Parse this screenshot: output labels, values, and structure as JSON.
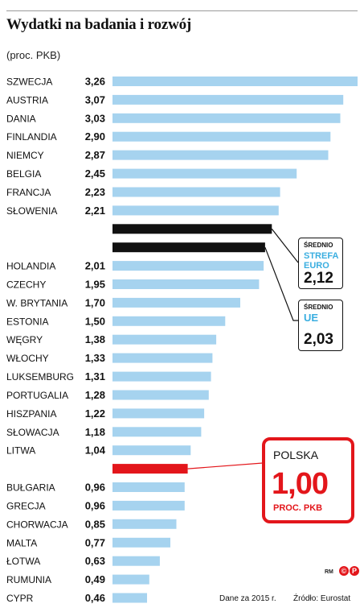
{
  "title": "Wydatki na badania i rozwój",
  "subtitle": "(proc. PKB)",
  "colors": {
    "bar": "#a6d3ef",
    "highlight": "#e3161b",
    "average": "#111111",
    "accent": "#3aaee0"
  },
  "chart_data": {
    "type": "bar",
    "orientation": "horizontal",
    "title": "Wydatki na badania i rozwój",
    "subtitle": "(proc. PKB)",
    "rows": [
      {
        "label": "SZWECJA",
        "value": 3.26,
        "text": "3,26"
      },
      {
        "label": "AUSTRIA",
        "value": 3.07,
        "text": "3,07"
      },
      {
        "label": "DANIA",
        "value": 3.03,
        "text": "3,03"
      },
      {
        "label": "FINLANDIA",
        "value": 2.9,
        "text": "2,90"
      },
      {
        "label": "NIEMCY",
        "value": 2.87,
        "text": "2,87"
      },
      {
        "label": "BELGIA",
        "value": 2.45,
        "text": "2,45"
      },
      {
        "label": "FRANCJA",
        "value": 2.23,
        "text": "2,23"
      },
      {
        "label": "SŁOWENIA",
        "value": 2.21,
        "text": "2,21"
      },
      {
        "label": "",
        "value": 2.12,
        "kind": "average",
        "ref": "strefa"
      },
      {
        "label": "",
        "value": 2.03,
        "kind": "average",
        "ref": "ue"
      },
      {
        "label": "HOLANDIA",
        "value": 2.01,
        "text": "2,01"
      },
      {
        "label": "CZECHY",
        "value": 1.95,
        "text": "1,95"
      },
      {
        "label": "W. BRYTANIA",
        "value": 1.7,
        "text": "1,70"
      },
      {
        "label": "ESTONIA",
        "value": 1.5,
        "text": "1,50"
      },
      {
        "label": "WĘGRY",
        "value": 1.38,
        "text": "1,38"
      },
      {
        "label": "WŁOCHY",
        "value": 1.33,
        "text": "1,33"
      },
      {
        "label": "LUKSEMBURG",
        "value": 1.31,
        "text": "1,31"
      },
      {
        "label": "PORTUGALIA",
        "value": 1.28,
        "text": "1,28"
      },
      {
        "label": "HISZPANIA",
        "value": 1.22,
        "text": "1,22"
      },
      {
        "label": "SŁOWACJA",
        "value": 1.18,
        "text": "1,18"
      },
      {
        "label": "LITWA",
        "value": 1.04,
        "text": "1,04"
      },
      {
        "label": "",
        "value": 1.0,
        "kind": "highlight",
        "ref": "polska"
      },
      {
        "label": "BUŁGARIA",
        "value": 0.96,
        "text": "0,96"
      },
      {
        "label": "GRECJA",
        "value": 0.96,
        "text": "0,96"
      },
      {
        "label": "CHORWACJA",
        "value": 0.85,
        "text": "0,85"
      },
      {
        "label": "MALTA",
        "value": 0.77,
        "text": "0,77"
      },
      {
        "label": "ŁOTWA",
        "value": 0.63,
        "text": "0,63"
      },
      {
        "label": "RUMUNIA",
        "value": 0.49,
        "text": "0,49"
      },
      {
        "label": "CYPR",
        "value": 0.46,
        "text": "0,46"
      }
    ],
    "xlim": [
      0,
      3.26
    ],
    "grid": false,
    "legend": "none"
  },
  "callouts": {
    "strefa": {
      "label": "ŚREDNIO",
      "name_line1": "STREFA",
      "name_line2": "EURO",
      "value": "2,12"
    },
    "ue": {
      "label": "ŚREDNIO",
      "name_line1": "UE",
      "value": "2,03"
    },
    "polska": {
      "label": "POLSKA",
      "value": "1,00",
      "unit": "PROC. PKB"
    }
  },
  "footer": {
    "note": "Dane za 2015 r.",
    "source": "Źródło: Eurostat",
    "author": "RM"
  },
  "logos": [
    "©",
    "P"
  ]
}
